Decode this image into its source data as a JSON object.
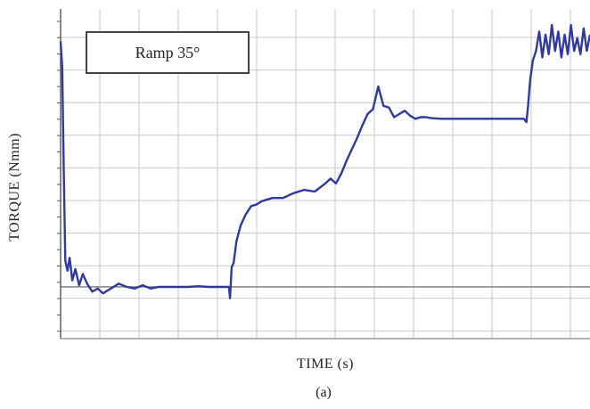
{
  "chart_data": {
    "type": "line",
    "title": "",
    "ylabel": "TORQUE (Nmm)",
    "xlabel": "TIME (s)",
    "caption": "(a)",
    "annotation": "Ramp 35°",
    "grid": true,
    "series_color": "#2f3a9c",
    "ylim": [
      -1.6,
      8.6
    ],
    "xlim": [
      0,
      100
    ],
    "x": [
      0,
      0.3,
      0.6,
      0.9,
      1.3,
      1.7,
      2.2,
      2.8,
      3.5,
      4.2,
      5.0,
      6.0,
      7.0,
      8.0,
      9.5,
      11,
      12.5,
      14,
      15.5,
      17,
      18.5,
      20,
      22,
      24,
      26,
      28,
      30,
      31.8,
      32,
      32.3,
      32.7,
      33.2,
      34,
      35,
      36,
      37,
      38,
      40,
      42,
      44,
      46,
      48,
      50,
      51,
      52,
      53,
      54,
      55,
      56,
      57,
      58,
      59,
      60,
      61,
      62,
      63,
      64,
      65,
      66,
      67,
      68,
      69,
      70,
      72,
      74,
      76,
      78,
      80,
      82,
      84,
      86,
      87.5,
      88,
      88.3,
      88.7,
      89.2,
      89.8,
      90.4,
      91,
      91.6,
      92.2,
      92.8,
      93.4,
      94,
      94.6,
      95.2,
      95.8,
      96.4,
      97,
      97.6,
      98.2,
      98.8,
      99.4,
      100
    ],
    "y": [
      7.6,
      6.8,
      3.5,
      0.8,
      0.5,
      0.9,
      0.2,
      0.55,
      0.05,
      0.4,
      0.1,
      -0.15,
      -0.05,
      -0.2,
      -0.05,
      0.1,
      0.0,
      -0.05,
      0.05,
      -0.05,
      0.0,
      0.0,
      0.0,
      0.0,
      0.02,
      0.0,
      0.0,
      0.0,
      -0.35,
      0.6,
      0.75,
      1.4,
      1.9,
      2.25,
      2.5,
      2.55,
      2.65,
      2.75,
      2.75,
      2.9,
      3.0,
      2.95,
      3.2,
      3.35,
      3.2,
      3.5,
      3.9,
      4.25,
      4.6,
      5.0,
      5.35,
      5.5,
      6.2,
      5.6,
      5.55,
      5.25,
      5.35,
      5.45,
      5.3,
      5.2,
      5.25,
      5.25,
      5.22,
      5.2,
      5.2,
      5.2,
      5.2,
      5.2,
      5.2,
      5.2,
      5.2,
      5.2,
      5.1,
      5.6,
      6.4,
      7.0,
      7.3,
      7.9,
      7.1,
      7.8,
      7.2,
      8.1,
      7.3,
      7.9,
      7.1,
      7.8,
      7.2,
      8.1,
      7.3,
      7.7,
      7.2,
      8.0,
      7.3,
      7.8
    ]
  }
}
